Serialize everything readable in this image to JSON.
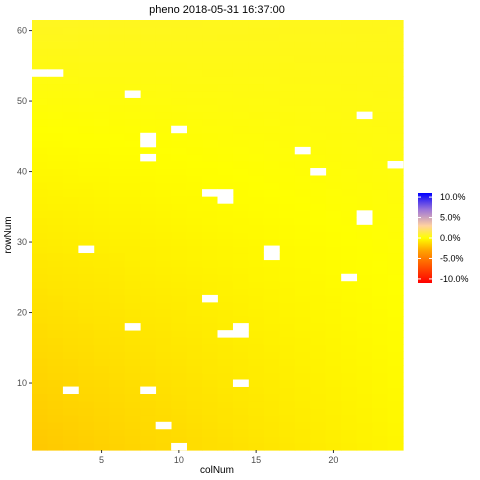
{
  "chart_data": {
    "type": "heatmap",
    "title": "pheno 2018-05-31 16:37:00",
    "xlabel": "colNum",
    "ylabel": "rowNum",
    "xlim": [
      1,
      24
    ],
    "ylim": [
      1,
      61
    ],
    "x_ticks": [
      5,
      10,
      15,
      20
    ],
    "y_ticks": [
      10,
      20,
      30,
      40,
      50,
      60
    ],
    "fill_description": "continuous smooth gradient, yellow near 0% almost everywhere, slightly warmer (tan) toward bottom-left",
    "corner_values": {
      "top_left": 0.6,
      "top_right": 0.5,
      "bottom_left": -1.8,
      "bottom_right": -0.3
    },
    "missing_cells": [
      {
        "col": 1,
        "row": 54
      },
      {
        "col": 2,
        "row": 54
      },
      {
        "col": 7,
        "row": 51
      },
      {
        "col": 22,
        "row": 48
      },
      {
        "col": 10,
        "row": 46
      },
      {
        "col": 8,
        "row": 45
      },
      {
        "col": 8,
        "row": 44
      },
      {
        "col": 18,
        "row": 43
      },
      {
        "col": 8,
        "row": 42
      },
      {
        "col": 24,
        "row": 41
      },
      {
        "col": 19,
        "row": 40
      },
      {
        "col": 12,
        "row": 37
      },
      {
        "col": 13,
        "row": 37
      },
      {
        "col": 13,
        "row": 36
      },
      {
        "col": 22,
        "row": 34
      },
      {
        "col": 22,
        "row": 33
      },
      {
        "col": 4,
        "row": 29
      },
      {
        "col": 16,
        "row": 29
      },
      {
        "col": 16,
        "row": 28
      },
      {
        "col": 21,
        "row": 25
      },
      {
        "col": 12,
        "row": 22
      },
      {
        "col": 7,
        "row": 18
      },
      {
        "col": 14,
        "row": 18
      },
      {
        "col": 13,
        "row": 17
      },
      {
        "col": 14,
        "row": 17
      },
      {
        "col": 14,
        "row": 10
      },
      {
        "col": 3,
        "row": 9
      },
      {
        "col": 8,
        "row": 9
      },
      {
        "col": 9,
        "row": 4
      },
      {
        "col": 10,
        "row": 1
      }
    ],
    "legend": {
      "position": "right",
      "range": [
        -11,
        11
      ],
      "breaks": [
        10,
        5,
        0,
        -5,
        -10
      ],
      "labels": [
        "10.0%",
        "5.0%",
        "0.0%",
        "-5.0%",
        "-10.0%"
      ],
      "colors": [
        {
          "value": -11,
          "color": "#ff0000"
        },
        {
          "value": -3,
          "color": "#ffa500"
        },
        {
          "value": 0,
          "color": "#ffff00"
        },
        {
          "value": 3,
          "color": "#ffd1a0"
        },
        {
          "value": 7,
          "color": "#9a73d9"
        },
        {
          "value": 11,
          "color": "#0000ff"
        }
      ]
    }
  }
}
